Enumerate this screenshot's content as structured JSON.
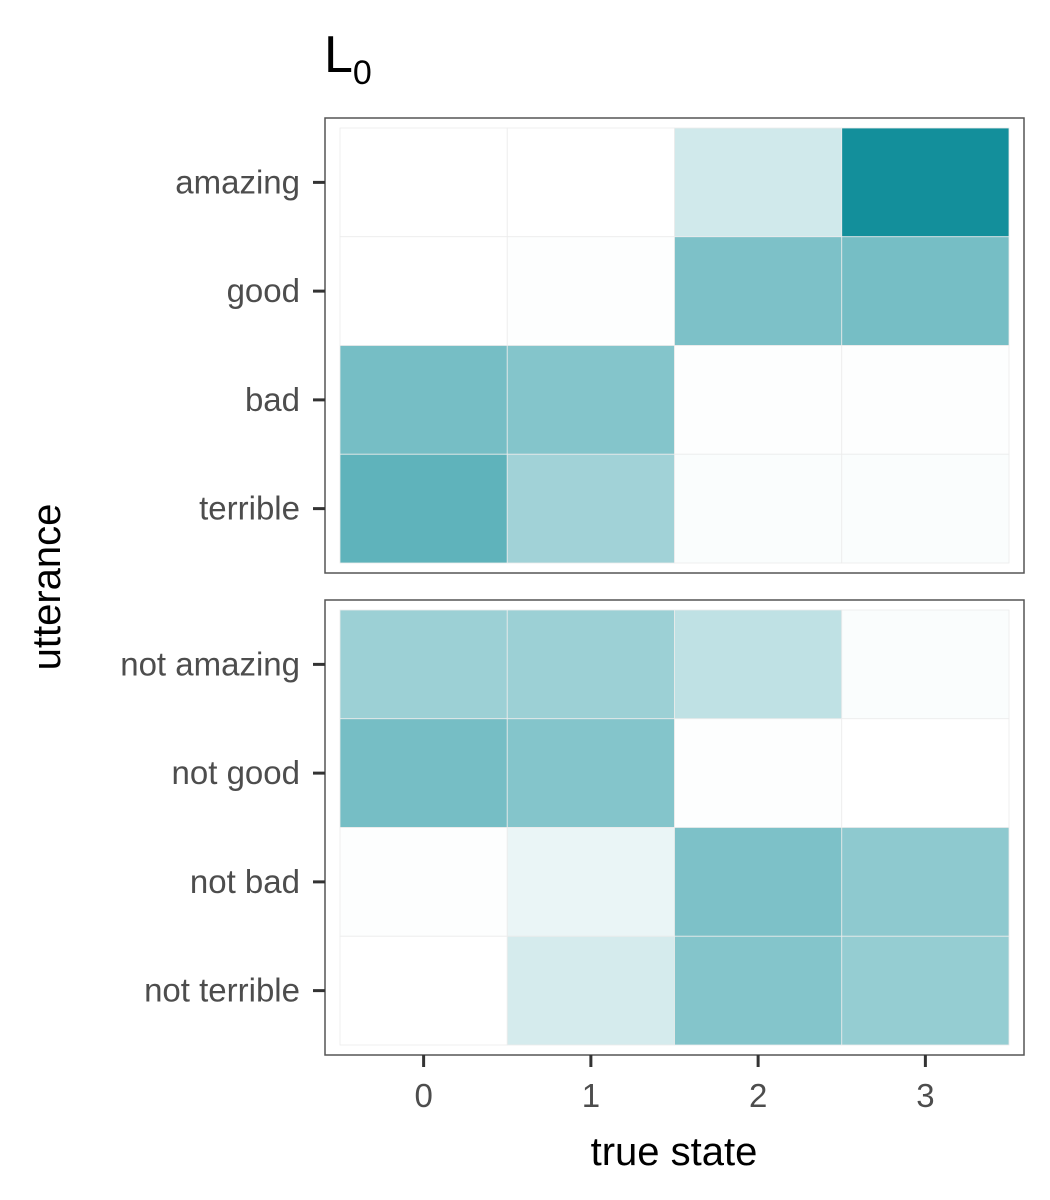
{
  "chart_data": {
    "type": "heatmap",
    "title_main": "L",
    "title_subscript": "0",
    "xlabel": "true state",
    "ylabel": "utterance",
    "x_categories": [
      "0",
      "1",
      "2",
      "3"
    ],
    "color_low": "#ffffff",
    "color_high": "#138f9b",
    "panels": [
      {
        "rows": [
          "amazing",
          "good",
          "bad",
          "terrible"
        ],
        "values": [
          [
            0.0,
            0.0,
            0.2,
            1.0
          ],
          [
            0.0,
            0.01,
            0.55,
            0.58
          ],
          [
            0.58,
            0.52,
            0.01,
            0.01
          ],
          [
            0.68,
            0.4,
            0.02,
            0.02
          ]
        ]
      },
      {
        "rows": [
          "not amazing",
          "not good",
          "not bad",
          "not terrible"
        ],
        "values": [
          [
            0.42,
            0.42,
            0.27,
            0.02
          ],
          [
            0.58,
            0.52,
            0.01,
            0.0
          ],
          [
            0.01,
            0.09,
            0.55,
            0.48
          ],
          [
            0.0,
            0.18,
            0.52,
            0.45
          ]
        ]
      }
    ]
  }
}
